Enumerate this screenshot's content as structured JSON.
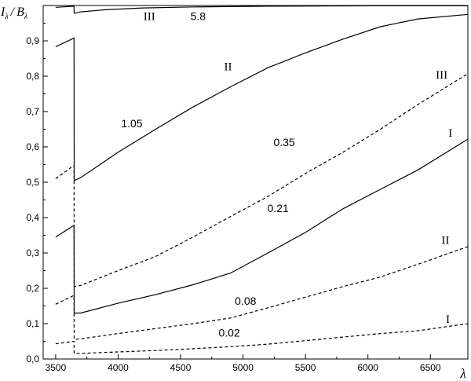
{
  "chart_data": {
    "type": "line",
    "title": "",
    "ylabel": {
      "main": "I",
      "sub1": "λ",
      "sep": "/",
      "main2": "B",
      "sub2": "λ"
    },
    "xlabel": "λ",
    "xlim": [
      3400,
      6800
    ],
    "ylim": [
      0.0,
      1.0
    ],
    "x_ticks": [
      3500,
      4000,
      4500,
      5000,
      5500,
      6000,
      6500
    ],
    "x_tick_labels": [
      "3500",
      "4000",
      "4500",
      "5000",
      "5500",
      "6000",
      "6500"
    ],
    "y_ticks": [
      0.0,
      0.1,
      0.2,
      0.3,
      0.4,
      0.5,
      0.6,
      0.7,
      0.8,
      0.9
    ],
    "y_tick_labels": [
      "0,0",
      "0,1",
      "0,2",
      "0,3",
      "0,4",
      "0,5",
      "0,6",
      "0,7",
      "0,8",
      "0,9"
    ],
    "grid": false,
    "series": [
      {
        "group": "5.8",
        "roman": "III",
        "style": "solid",
        "points": [
          [
            3500,
            0.995
          ],
          [
            3647,
            0.998
          ],
          [
            3648,
            0.978
          ],
          [
            3700,
            0.982
          ],
          [
            3900,
            0.988
          ],
          [
            4200,
            0.993
          ],
          [
            4600,
            0.996
          ],
          [
            5200,
            0.998
          ],
          [
            6000,
            0.999
          ],
          [
            6800,
            0.999
          ]
        ]
      },
      {
        "group": "1.05",
        "roman": "II",
        "style": "solid",
        "points": [
          [
            3500,
            0.883
          ],
          [
            3647,
            0.908
          ],
          [
            3648,
            0.505
          ],
          [
            3700,
            0.513
          ],
          [
            4000,
            0.585
          ],
          [
            4300,
            0.65
          ],
          [
            4600,
            0.713
          ],
          [
            4900,
            0.77
          ],
          [
            5200,
            0.824
          ],
          [
            5500,
            0.866
          ],
          [
            5800,
            0.905
          ],
          [
            6100,
            0.94
          ],
          [
            6400,
            0.962
          ],
          [
            6800,
            0.975
          ]
        ]
      },
      {
        "group": "0.35",
        "roman": "III",
        "style": "dashed",
        "points": [
          [
            3500,
            0.51
          ],
          [
            3647,
            0.548
          ],
          [
            3648,
            0.205
          ],
          [
            3700,
            0.208
          ],
          [
            4000,
            0.25
          ],
          [
            4300,
            0.29
          ],
          [
            4600,
            0.345
          ],
          [
            4900,
            0.403
          ],
          [
            5200,
            0.46
          ],
          [
            5500,
            0.525
          ],
          [
            5800,
            0.585
          ],
          [
            6100,
            0.65
          ],
          [
            6400,
            0.72
          ],
          [
            6800,
            0.807
          ]
        ]
      },
      {
        "group": "0.21",
        "roman": "I",
        "style": "solid",
        "points": [
          [
            3500,
            0.345
          ],
          [
            3647,
            0.378
          ],
          [
            3648,
            0.13
          ],
          [
            3700,
            0.13
          ],
          [
            4000,
            0.158
          ],
          [
            4300,
            0.182
          ],
          [
            4600,
            0.21
          ],
          [
            4900,
            0.243
          ],
          [
            5200,
            0.3
          ],
          [
            5500,
            0.358
          ],
          [
            5800,
            0.425
          ],
          [
            6100,
            0.48
          ],
          [
            6400,
            0.535
          ],
          [
            6800,
            0.622
          ]
        ]
      },
      {
        "group": "0.08",
        "roman": "II",
        "style": "dashed",
        "points": [
          [
            3500,
            0.155
          ],
          [
            3647,
            0.18
          ],
          [
            3648,
            0.056
          ],
          [
            3700,
            0.057
          ],
          [
            4000,
            0.072
          ],
          [
            4300,
            0.086
          ],
          [
            4600,
            0.1
          ],
          [
            4900,
            0.116
          ],
          [
            5200,
            0.145
          ],
          [
            5500,
            0.175
          ],
          [
            5800,
            0.205
          ],
          [
            6100,
            0.232
          ],
          [
            6400,
            0.268
          ],
          [
            6800,
            0.318
          ]
        ]
      },
      {
        "group": "0.02",
        "roman": "I",
        "style": "dashed",
        "points": [
          [
            3500,
            0.043
          ],
          [
            3647,
            0.05
          ],
          [
            3648,
            0.016
          ],
          [
            3700,
            0.016
          ],
          [
            4000,
            0.02
          ],
          [
            4300,
            0.024
          ],
          [
            4600,
            0.029
          ],
          [
            4900,
            0.035
          ],
          [
            5200,
            0.042
          ],
          [
            5500,
            0.052
          ],
          [
            5800,
            0.062
          ],
          [
            6100,
            0.072
          ],
          [
            6400,
            0.08
          ],
          [
            6800,
            0.1
          ]
        ]
      }
    ],
    "annotations": [
      {
        "text": "III",
        "style": "roman",
        "x": 4250,
        "y": 0.97
      },
      {
        "text": "5.8",
        "style": "value",
        "x": 4640,
        "y": 0.97
      },
      {
        "text": "II",
        "style": "roman",
        "x": 4880,
        "y": 0.828
      },
      {
        "text": "1.05",
        "style": "value",
        "x": 4110,
        "y": 0.667
      },
      {
        "text": "III",
        "style": "roman",
        "x": 6590,
        "y": 0.805
      },
      {
        "text": "0.35",
        "style": "value",
        "x": 5330,
        "y": 0.613
      },
      {
        "text": "I",
        "style": "roman",
        "x": 6660,
        "y": 0.64
      },
      {
        "text": "0.21",
        "style": "value",
        "x": 5280,
        "y": 0.427
      },
      {
        "text": "II",
        "style": "roman",
        "x": 6620,
        "y": 0.337
      },
      {
        "text": "0.08",
        "style": "value",
        "x": 5020,
        "y": 0.165
      },
      {
        "text": "I",
        "style": "roman",
        "x": 6640,
        "y": 0.113
      },
      {
        "text": "0.02",
        "style": "value",
        "x": 4890,
        "y": 0.075
      }
    ]
  }
}
